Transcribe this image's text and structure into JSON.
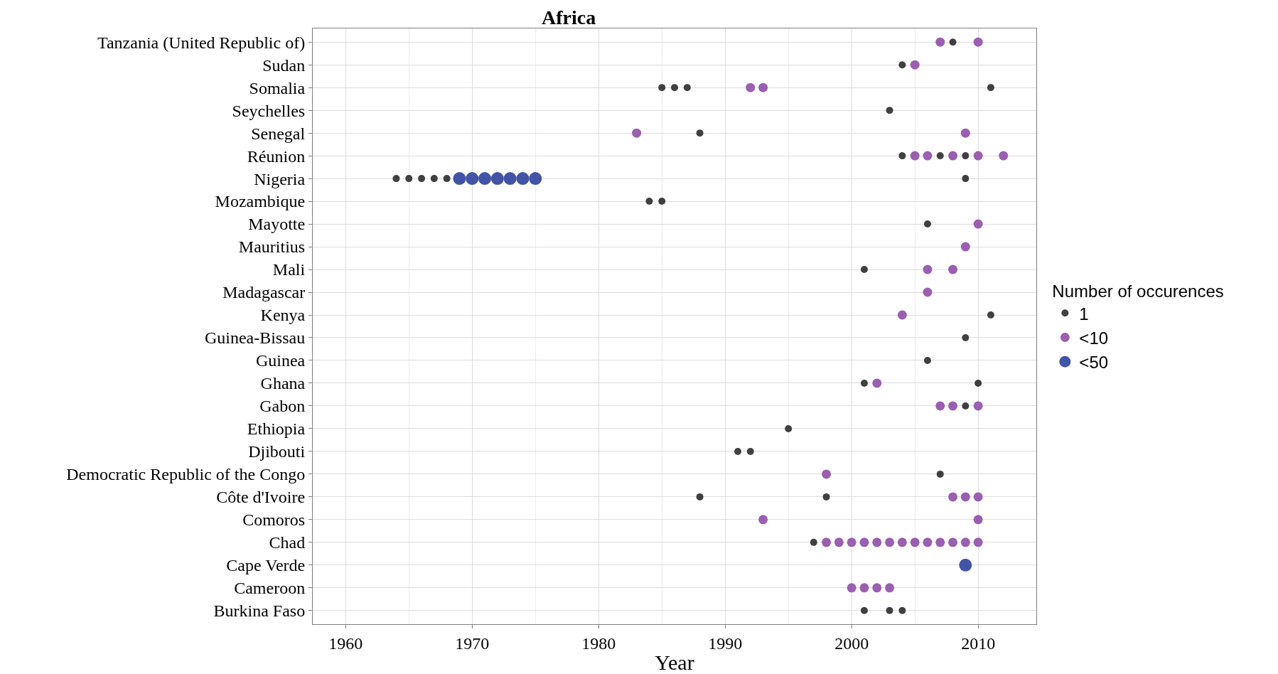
{
  "chart_data": {
    "type": "scatter",
    "title": "Africa",
    "xlabel": "Year",
    "legend_title": "Number of occurences",
    "orientation": "horizontal",
    "categories": [
      "Tanzania (United Republic of)",
      "Sudan",
      "Somalia",
      "Seychelles",
      "Senegal",
      "Réunion",
      "Nigeria",
      "Mozambique",
      "Mayotte",
      "Mauritius",
      "Mali",
      "Madagascar",
      "Kenya",
      "Guinea-Bissau",
      "Guinea",
      "Ghana",
      "Gabon",
      "Ethiopia",
      "Djibouti",
      "Democratic Republic of the Congo",
      "Côte d'Ivoire",
      "Comoros",
      "Chad",
      "Cape Verde",
      "Cameroon",
      "Burkina Faso"
    ],
    "series": [
      {
        "name": "1",
        "color": "#404040",
        "values": [
          2008,
          2004,
          1985,
          1986,
          1987,
          2011,
          2003,
          1988,
          2004,
          2007,
          2009,
          1964,
          1965,
          1966,
          1967,
          1968,
          2009,
          1984,
          1985,
          2006,
          2001,
          2011,
          2009,
          2006,
          2001,
          2010,
          2009,
          1995,
          1991,
          1992,
          2007,
          1988,
          1998,
          1997,
          2001,
          2003,
          2004
        ],
        "x": [
          "Tanzania (United Republic of)",
          "Sudan",
          "Somalia",
          "Somalia",
          "Somalia",
          "Somalia",
          "Seychelles",
          "Senegal",
          "Réunion",
          "Réunion",
          "Réunion",
          "Nigeria",
          "Nigeria",
          "Nigeria",
          "Nigeria",
          "Nigeria",
          "Nigeria",
          "Mozambique",
          "Mozambique",
          "Mayotte",
          "Mali",
          "Kenya",
          "Guinea-Bissau",
          "Guinea",
          "Ghana",
          "Ghana",
          "Gabon",
          "Ethiopia",
          "Djibouti",
          "Djibouti",
          "Democratic Republic of the Congo",
          "Côte d'Ivoire",
          "Côte d'Ivoire",
          "Chad",
          "Burkina Faso",
          "Burkina Faso",
          "Burkina Faso"
        ]
      },
      {
        "name": "<10",
        "color": "#9a5fb0",
        "values": [
          2007,
          2010,
          2005,
          1992,
          1993,
          1983,
          2009,
          2005,
          2006,
          2008,
          2010,
          2012,
          2010,
          2009,
          2006,
          2008,
          2006,
          2004,
          2002,
          2007,
          2008,
          2010,
          1998,
          2008,
          2009,
          2010,
          1993,
          2010,
          1998,
          1999,
          2000,
          2001,
          2002,
          2003,
          2004,
          2005,
          2006,
          2007,
          2008,
          2009,
          2010,
          2000,
          2001,
          2002,
          2003
        ],
        "x": [
          "Tanzania (United Republic of)",
          "Tanzania (United Republic of)",
          "Sudan",
          "Somalia",
          "Somalia",
          "Senegal",
          "Senegal",
          "Réunion",
          "Réunion",
          "Réunion",
          "Réunion",
          "Réunion",
          "Mayotte",
          "Mauritius",
          "Mali",
          "Mali",
          "Madagascar",
          "Kenya",
          "Ghana",
          "Gabon",
          "Gabon",
          "Gabon",
          "Democratic Republic of the Congo",
          "Côte d'Ivoire",
          "Côte d'Ivoire",
          "Côte d'Ivoire",
          "Comoros",
          "Comoros",
          "Chad",
          "Chad",
          "Chad",
          "Chad",
          "Chad",
          "Chad",
          "Chad",
          "Chad",
          "Chad",
          "Chad",
          "Chad",
          "Chad",
          "Chad",
          "Cameroon",
          "Cameroon",
          "Cameroon",
          "Cameroon"
        ]
      },
      {
        "name": "<50",
        "color": "#4354a6",
        "values": [
          1969,
          1970,
          1971,
          1972,
          1973,
          1974,
          1975,
          2009
        ],
        "x": [
          "Nigeria",
          "Nigeria",
          "Nigeria",
          "Nigeria",
          "Nigeria",
          "Nigeria",
          "Nigeria",
          "Cape Verde"
        ]
      }
    ],
    "xlim": [
      1957.4,
      2014.6
    ],
    "xticks": [
      1960,
      1970,
      1980,
      1990,
      2000,
      2010
    ],
    "grid": true,
    "legend": "right",
    "marker": "circle"
  }
}
